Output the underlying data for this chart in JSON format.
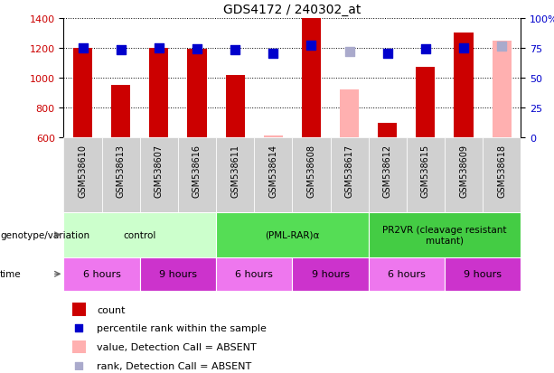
{
  "title": "GDS4172 / 240302_at",
  "samples": [
    "GSM538610",
    "GSM538613",
    "GSM538607",
    "GSM538616",
    "GSM538611",
    "GSM538614",
    "GSM538608",
    "GSM538617",
    "GSM538612",
    "GSM538615",
    "GSM538609",
    "GSM538618"
  ],
  "bar_values": [
    1200,
    953,
    1200,
    1195,
    1020,
    615,
    1400,
    920,
    695,
    1070,
    1300,
    1250
  ],
  "bar_absent": [
    false,
    false,
    false,
    false,
    false,
    true,
    false,
    true,
    false,
    false,
    false,
    true
  ],
  "dot_values": [
    75,
    73,
    75,
    74,
    73,
    70,
    77,
    72,
    70,
    74,
    75,
    76
  ],
  "dot_absent": [
    false,
    false,
    false,
    false,
    false,
    false,
    false,
    true,
    false,
    false,
    false,
    true
  ],
  "ylim_left": [
    600,
    1400
  ],
  "ylim_right": [
    0,
    100
  ],
  "yticks_left": [
    600,
    800,
    1000,
    1200,
    1400
  ],
  "yticks_right": [
    0,
    25,
    50,
    75,
    100
  ],
  "ytick_labels_right": [
    "0",
    "25",
    "50",
    "75",
    "100%"
  ],
  "color_bar_present": "#cc0000",
  "color_bar_absent": "#ffb0b0",
  "color_dot_present": "#0000cc",
  "color_dot_absent": "#aaaacc",
  "genotype_groups": [
    {
      "label": "control",
      "start": 0,
      "end": 4,
      "color": "#ccffcc"
    },
    {
      "label": "(PML-RAR)α",
      "start": 4,
      "end": 8,
      "color": "#55dd55"
    },
    {
      "label": "PR2VR (cleavage resistant\nmutant)",
      "start": 8,
      "end": 12,
      "color": "#44cc44"
    }
  ],
  "time_groups": [
    {
      "label": "6 hours",
      "start": 0,
      "end": 2,
      "color": "#ee77ee"
    },
    {
      "label": "9 hours",
      "start": 2,
      "end": 4,
      "color": "#cc33cc"
    },
    {
      "label": "6 hours",
      "start": 4,
      "end": 6,
      "color": "#ee77ee"
    },
    {
      "label": "9 hours",
      "start": 6,
      "end": 8,
      "color": "#cc33cc"
    },
    {
      "label": "6 hours",
      "start": 8,
      "end": 10,
      "color": "#ee77ee"
    },
    {
      "label": "9 hours",
      "start": 10,
      "end": 12,
      "color": "#cc33cc"
    }
  ],
  "legend_items": [
    {
      "label": "count",
      "color": "#cc0000",
      "type": "bar"
    },
    {
      "label": "percentile rank within the sample",
      "color": "#0000cc",
      "type": "dot"
    },
    {
      "label": "value, Detection Call = ABSENT",
      "color": "#ffb0b0",
      "type": "bar"
    },
    {
      "label": "rank, Detection Call = ABSENT",
      "color": "#aaaacc",
      "type": "dot"
    }
  ],
  "ylabel_left_color": "#cc0000",
  "ylabel_right_color": "#0000cc",
  "background_color": "#ffffff",
  "bar_width": 0.5,
  "dot_size": 55,
  "sample_col_bg": "#dddddd",
  "label_area_bg": "#ffffff"
}
